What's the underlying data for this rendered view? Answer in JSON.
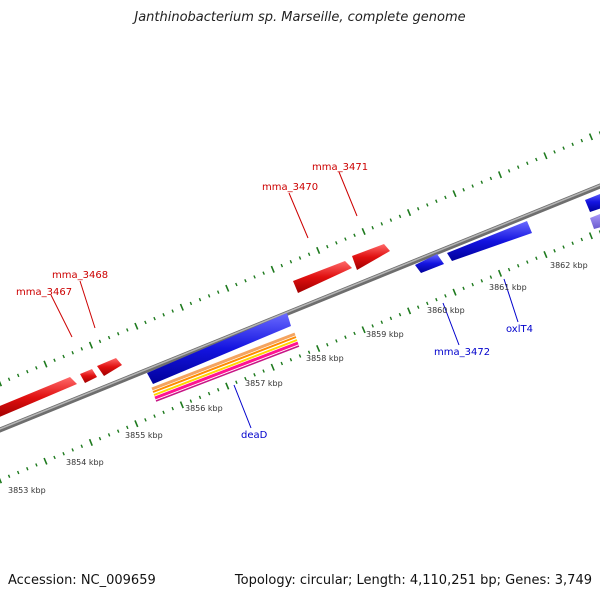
{
  "title": "Janthinobacterium sp. Marseille, complete genome",
  "footer": {
    "accession": "Accession: NC_009659",
    "info": "Topology: circular; Length: 4,110,251 bp; Genes: 3,749"
  },
  "kbp_labels": [
    "3853 kbp",
    "3854 kbp",
    "3855 kbp",
    "3856 kbp",
    "3857 kbp",
    "3858 kbp",
    "3859 kbp",
    "3860 kbp",
    "3861 kbp",
    "3862 kbp"
  ],
  "gene_labels": {
    "mma_3467": "mma_3467",
    "mma_3468": "mma_3468",
    "mma_3470": "mma_3470",
    "mma_3471": "mma_3471",
    "mma_3472": "mma_3472",
    "oxlT4": "oxlT4",
    "deaD": "deaD"
  },
  "colors": {
    "forward_gene": "#e01010",
    "reverse_gene": "#1414e0",
    "backbone": "#808080",
    "tick": "#1e7a1e",
    "label_forward": "#cc0000",
    "label_reverse": "#0000cc"
  }
}
